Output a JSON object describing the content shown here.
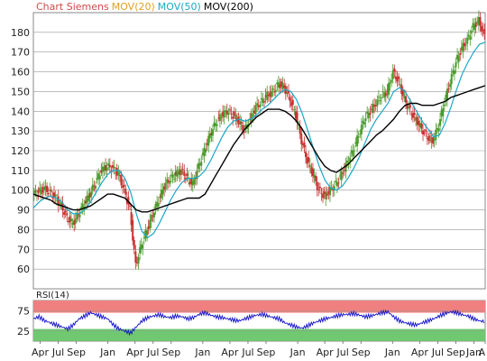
{
  "legend": [
    {
      "text": "Chart Siemens",
      "color": "#d04a4a"
    },
    {
      "text": "MOV(20)",
      "color": "#e0a020"
    },
    {
      "text": "MOV(50)",
      "color": "#1aa7c8"
    },
    {
      "text": "MOV(200)",
      "color": "#000000"
    }
  ],
  "colors": {
    "candle_up": "#4a9a2a",
    "candle_down": "#c83030",
    "mov20": "#e0a020",
    "mov50": "#1aa7c8",
    "mov200": "#000000",
    "rsi_line": "#1010c8",
    "rsi_over": "#f08080",
    "rsi_under": "#70c870",
    "grid": "#999999"
  },
  "chart_data": [
    {
      "type": "line",
      "name_shown": "Chart Siemens",
      "ylim": [
        50,
        190
      ],
      "yticks": [
        60,
        70,
        80,
        90,
        100,
        110,
        120,
        130,
        140,
        150,
        160,
        170,
        180
      ],
      "xlim": [
        0,
        100
      ],
      "xticks": [
        {
          "x": 1.5,
          "label": "Apr"
        },
        {
          "x": 5.5,
          "label": "Jul"
        },
        {
          "x": 9.5,
          "label": "Sep"
        },
        {
          "x": 16.5,
          "label": "Jan"
        },
        {
          "x": 22.5,
          "label": "Apr"
        },
        {
          "x": 26.5,
          "label": "Jul"
        },
        {
          "x": 30.5,
          "label": "Sep"
        },
        {
          "x": 37.5,
          "label": "Jan"
        },
        {
          "x": 43.5,
          "label": "Apr"
        },
        {
          "x": 47.5,
          "label": "Jul"
        },
        {
          "x": 51.5,
          "label": "Sep"
        },
        {
          "x": 58.5,
          "label": "Jan"
        },
        {
          "x": 64.5,
          "label": "Apr"
        },
        {
          "x": 68.5,
          "label": "Jul"
        },
        {
          "x": 72.5,
          "label": "Sep"
        },
        {
          "x": 79.5,
          "label": "Jan"
        },
        {
          "x": 85.5,
          "label": "Apr"
        },
        {
          "x": 89.5,
          "label": "Jul"
        },
        {
          "x": 93.5,
          "label": "Sep"
        },
        {
          "x": 97.5,
          "label": "Jan"
        },
        {
          "x": 100,
          "label": "A"
        }
      ],
      "close": [
        98,
        99,
        101,
        99,
        96,
        92,
        86,
        83,
        88,
        93,
        98,
        104,
        110,
        112,
        111,
        108,
        100,
        90,
        62,
        72,
        80,
        88,
        95,
        102,
        106,
        108,
        110,
        106,
        103,
        112,
        120,
        128,
        134,
        138,
        140,
        138,
        135,
        130,
        136,
        142,
        145,
        148,
        150,
        154,
        152,
        146,
        138,
        125,
        115,
        108,
        100,
        97,
        100,
        103,
        108,
        114,
        120,
        128,
        136,
        140,
        144,
        148,
        150,
        160,
        155,
        146,
        140,
        136,
        131,
        127,
        125,
        133,
        145,
        155,
        165,
        172,
        176,
        183,
        186,
        178
      ],
      "mov200": [
        98,
        97,
        96,
        95,
        93,
        92,
        91,
        90,
        90,
        91,
        92,
        94,
        96,
        98,
        98,
        97,
        96,
        93,
        90,
        89,
        89,
        90,
        91,
        92,
        93,
        94,
        95,
        96,
        96,
        96,
        98,
        103,
        108,
        113,
        118,
        123,
        127,
        131,
        134,
        137,
        139,
        141,
        141,
        141,
        140,
        138,
        135,
        131,
        126,
        121,
        116,
        112,
        110,
        109,
        111,
        113,
        116,
        119,
        122,
        125,
        128,
        130,
        133,
        136,
        140,
        143,
        144,
        144,
        143,
        143,
        143,
        144,
        145,
        147,
        148,
        149,
        150,
        151,
        152,
        153
      ],
      "mov50": [
        91,
        94,
        96,
        97,
        96,
        94,
        90,
        88,
        88,
        90,
        94,
        99,
        104,
        108,
        110,
        110,
        106,
        99,
        88,
        79,
        76,
        78,
        83,
        89,
        95,
        100,
        104,
        106,
        106,
        107,
        110,
        115,
        121,
        127,
        132,
        135,
        136,
        135,
        136,
        138,
        141,
        143,
        146,
        149,
        151,
        150,
        146,
        139,
        130,
        121,
        112,
        105,
        101,
        100,
        102,
        106,
        111,
        117,
        124,
        131,
        136,
        140,
        144,
        150,
        152,
        150,
        145,
        140,
        135,
        131,
        127,
        128,
        134,
        142,
        151,
        159,
        165,
        170,
        174,
        175
      ],
      "rsi": {
        "ylim": [
          0,
          100
        ],
        "yticks": [
          25,
          75
        ],
        "overbought": 70,
        "oversold": 30,
        "values": [
          55,
          60,
          50,
          45,
          40,
          35,
          30,
          40,
          55,
          62,
          70,
          65,
          60,
          55,
          40,
          30,
          25,
          20,
          35,
          50,
          58,
          62,
          65,
          60,
          58,
          62,
          60,
          55,
          58,
          66,
          70,
          64,
          60,
          58,
          55,
          52,
          50,
          55,
          60,
          64,
          66,
          62,
          58,
          55,
          45,
          40,
          35,
          32,
          38,
          45,
          50,
          55,
          58,
          62,
          65,
          66,
          68,
          64,
          60,
          62,
          66,
          70,
          72,
          60,
          50,
          45,
          42,
          40,
          45,
          50,
          55,
          62,
          68,
          72,
          70,
          65,
          62,
          55,
          50,
          48
        ]
      }
    }
  ],
  "rsi_panel": {
    "title": "RSI(14)",
    "tick_labels": [
      "75",
      "25"
    ]
  }
}
